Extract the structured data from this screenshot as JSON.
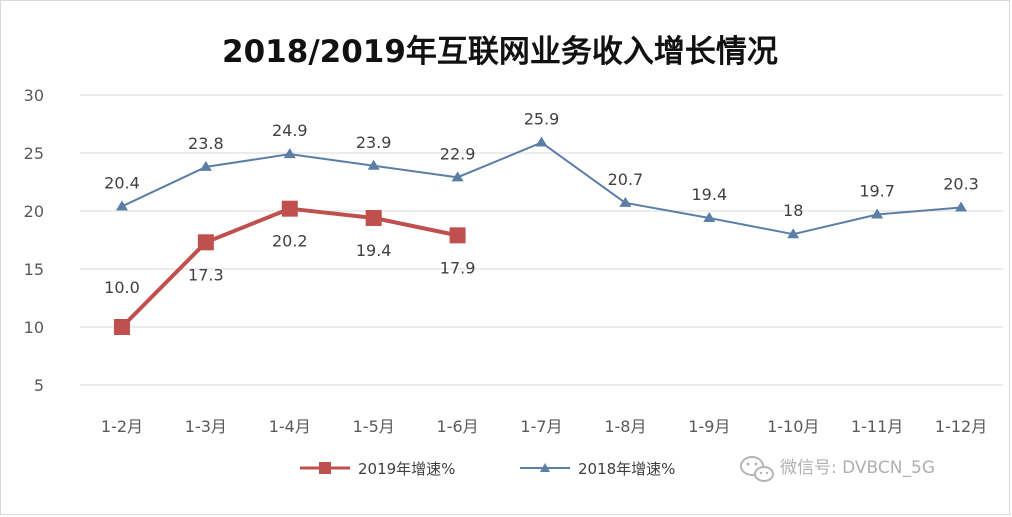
{
  "watermark": {
    "text": "微信号: DVBCN_5G",
    "icon": "wechat-icon",
    "color": "#b5b5b5"
  },
  "chart_data": {
    "type": "line",
    "title": "2018/2019年互联网业务收入增长情况",
    "xlabel": "",
    "ylabel": "",
    "categories": [
      "1-2月",
      "1-3月",
      "1-4月",
      "1-5月",
      "1-6月",
      "1-7月",
      "1-8月",
      "1-9月",
      "1-10月",
      "1-11月",
      "1-12月"
    ],
    "y_ticks": [
      "30",
      "25",
      "20",
      "15",
      "10",
      "5"
    ],
    "ylim": [
      0,
      30
    ],
    "grid": true,
    "legend_position": "bottom",
    "series": [
      {
        "name": "2019年增速%",
        "color": "#c0504d",
        "marker": "square",
        "values": [
          10.0,
          17.3,
          20.2,
          19.4,
          17.9,
          null,
          null,
          null,
          null,
          null,
          null
        ],
        "labels": [
          "10.0",
          "17.3",
          "20.2",
          "19.4",
          "17.9",
          null,
          null,
          null,
          null,
          null,
          null
        ],
        "label_pos": [
          "above",
          "below",
          "below",
          "below",
          "below"
        ]
      },
      {
        "name": "2018年增速%",
        "color": "#5b7ea6",
        "marker": "triangle",
        "values": [
          20.4,
          23.8,
          24.9,
          23.9,
          22.9,
          25.9,
          20.7,
          19.4,
          18,
          19.7,
          20.3
        ],
        "labels": [
          "20.4",
          "23.8",
          "24.9",
          "23.9",
          "22.9",
          "25.9",
          "20.7",
          "19.4",
          "18",
          "19.7",
          "20.3"
        ],
        "label_pos": [
          "above",
          "above",
          "above",
          "above",
          "above",
          "above",
          "above",
          "above",
          "above",
          "above",
          "above"
        ]
      }
    ]
  }
}
